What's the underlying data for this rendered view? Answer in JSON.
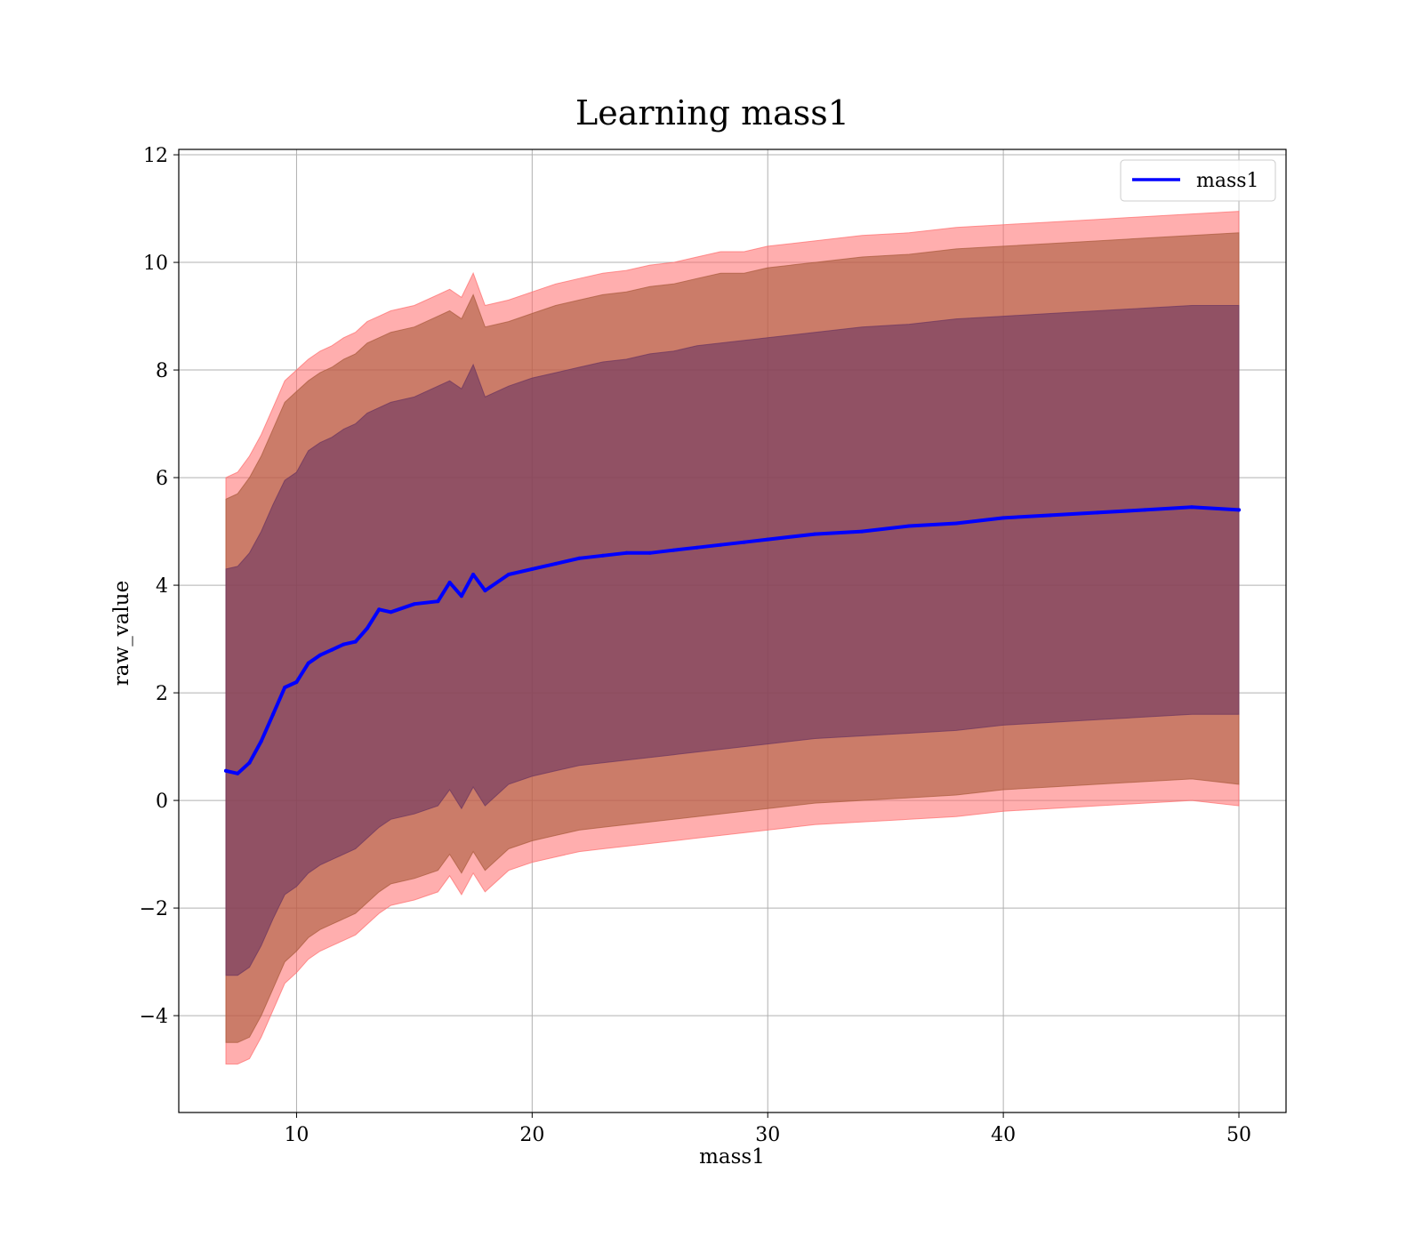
{
  "chart_data": {
    "type": "line",
    "title": "Learning mass1",
    "xlabel": "mass1",
    "ylabel": "raw_value",
    "xlim": [
      5,
      52
    ],
    "ylim": [
      -5.8,
      12.1
    ],
    "xticks": [
      10,
      20,
      30,
      40,
      50
    ],
    "yticks": [
      -4,
      -2,
      0,
      2,
      4,
      6,
      8,
      10,
      12
    ],
    "ytick_labels": [
      "−4",
      "−2",
      "0",
      "2",
      "4",
      "6",
      "8",
      "10",
      "12"
    ],
    "grid": true,
    "legend_position": "top-right",
    "x": [
      7,
      7.5,
      8,
      8.5,
      9,
      9.5,
      10,
      10.5,
      11,
      11.5,
      12,
      12.5,
      13,
      13.5,
      14,
      15,
      16,
      16.5,
      17,
      17.5,
      18,
      19,
      20,
      21,
      22,
      23,
      24,
      25,
      26,
      27,
      28,
      29,
      30,
      32,
      34,
      36,
      38,
      40,
      42,
      44,
      46,
      48,
      50
    ],
    "series": [
      {
        "name": "mass1",
        "color": "#0000ff",
        "values": [
          0.55,
          0.5,
          0.7,
          1.1,
          1.6,
          2.1,
          2.2,
          2.55,
          2.7,
          2.8,
          2.9,
          2.95,
          3.2,
          3.55,
          3.5,
          3.65,
          3.7,
          4.05,
          3.8,
          4.2,
          3.9,
          4.2,
          4.3,
          4.4,
          4.5,
          4.55,
          4.6,
          4.6,
          4.65,
          4.7,
          4.75,
          4.8,
          4.85,
          4.95,
          5.0,
          5.1,
          5.15,
          5.25,
          5.3,
          5.35,
          5.4,
          5.45,
          5.4
        ]
      }
    ],
    "bands": [
      {
        "color": "#ff6b6b",
        "upper": [
          6.0,
          6.1,
          6.4,
          6.8,
          7.3,
          7.8,
          8.0,
          8.2,
          8.35,
          8.45,
          8.6,
          8.7,
          8.9,
          9.0,
          9.1,
          9.2,
          9.4,
          9.5,
          9.35,
          9.8,
          9.2,
          9.3,
          9.45,
          9.6,
          9.7,
          9.8,
          9.85,
          9.95,
          10.0,
          10.1,
          10.2,
          10.2,
          10.3,
          10.4,
          10.5,
          10.55,
          10.65,
          10.7,
          10.75,
          10.8,
          10.85,
          10.9,
          10.95
        ],
        "lower": [
          -4.9,
          -4.9,
          -4.8,
          -4.4,
          -3.9,
          -3.4,
          -3.2,
          -2.95,
          -2.8,
          -2.7,
          -2.6,
          -2.5,
          -2.3,
          -2.1,
          -1.95,
          -1.85,
          -1.7,
          -1.4,
          -1.75,
          -1.35,
          -1.7,
          -1.3,
          -1.15,
          -1.05,
          -0.95,
          -0.9,
          -0.85,
          -0.8,
          -0.75,
          -0.7,
          -0.65,
          -0.6,
          -0.55,
          -0.45,
          -0.4,
          -0.35,
          -0.3,
          -0.2,
          -0.15,
          -0.1,
          -0.05,
          0.0,
          -0.1
        ]
      },
      {
        "color": "#a85a3a",
        "upper": [
          5.6,
          5.7,
          6.0,
          6.4,
          6.9,
          7.4,
          7.6,
          7.8,
          7.95,
          8.05,
          8.2,
          8.3,
          8.5,
          8.6,
          8.7,
          8.8,
          9.0,
          9.1,
          8.95,
          9.4,
          8.8,
          8.9,
          9.05,
          9.2,
          9.3,
          9.4,
          9.45,
          9.55,
          9.6,
          9.7,
          9.8,
          9.8,
          9.9,
          10.0,
          10.1,
          10.15,
          10.25,
          10.3,
          10.35,
          10.4,
          10.45,
          10.5,
          10.55
        ],
        "lower": [
          -4.5,
          -4.5,
          -4.4,
          -4.0,
          -3.5,
          -3.0,
          -2.8,
          -2.55,
          -2.4,
          -2.3,
          -2.2,
          -2.1,
          -1.9,
          -1.7,
          -1.55,
          -1.45,
          -1.3,
          -1.0,
          -1.35,
          -0.95,
          -1.3,
          -0.9,
          -0.75,
          -0.65,
          -0.55,
          -0.5,
          -0.45,
          -0.4,
          -0.35,
          -0.3,
          -0.25,
          -0.2,
          -0.15,
          -0.05,
          0.0,
          0.05,
          0.1,
          0.2,
          0.25,
          0.3,
          0.35,
          0.4,
          0.3
        ]
      },
      {
        "color": "#6b3560",
        "upper": [
          4.3,
          4.35,
          4.6,
          5.0,
          5.5,
          5.95,
          6.1,
          6.5,
          6.65,
          6.75,
          6.9,
          7.0,
          7.2,
          7.3,
          7.4,
          7.5,
          7.7,
          7.8,
          7.65,
          8.1,
          7.5,
          7.7,
          7.85,
          7.95,
          8.05,
          8.15,
          8.2,
          8.3,
          8.35,
          8.45,
          8.5,
          8.55,
          8.6,
          8.7,
          8.8,
          8.85,
          8.95,
          9.0,
          9.05,
          9.1,
          9.15,
          9.2,
          9.2
        ],
        "lower": [
          -3.25,
          -3.25,
          -3.1,
          -2.7,
          -2.2,
          -1.75,
          -1.6,
          -1.35,
          -1.2,
          -1.1,
          -1.0,
          -0.9,
          -0.7,
          -0.5,
          -0.35,
          -0.25,
          -0.1,
          0.2,
          -0.15,
          0.25,
          -0.1,
          0.3,
          0.45,
          0.55,
          0.65,
          0.7,
          0.75,
          0.8,
          0.85,
          0.9,
          0.95,
          1.0,
          1.05,
          1.15,
          1.2,
          1.25,
          1.3,
          1.4,
          1.45,
          1.5,
          1.55,
          1.6,
          1.6
        ]
      }
    ]
  }
}
